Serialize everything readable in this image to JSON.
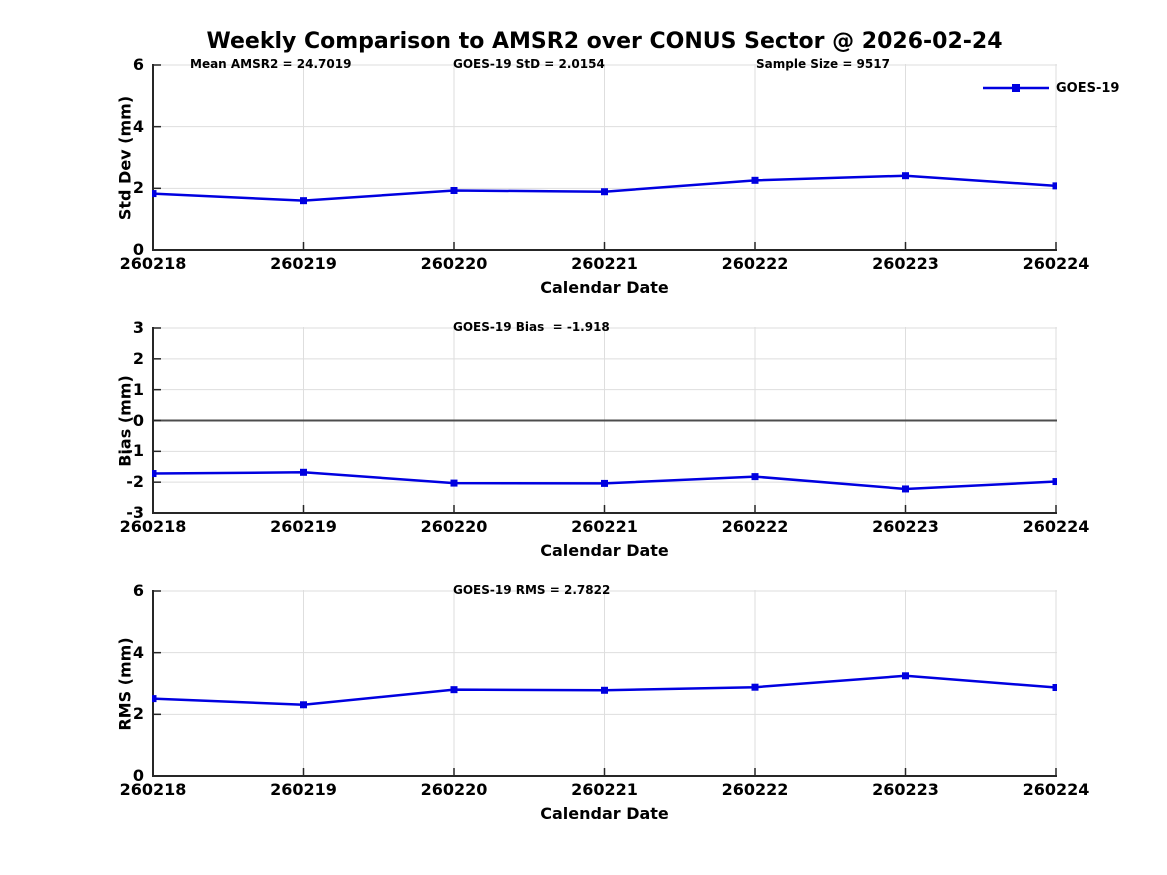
{
  "figure": {
    "title": "Weekly Comparison to AMSR2 over CONUS Sector @ 2026-02-24"
  },
  "legend": {
    "label": "GOES-19"
  },
  "colors": {
    "line": "#0000E0",
    "marker": "#0000E0",
    "grid": "#DEDEDE",
    "axis": "#262626",
    "zero_line": "#4D4D4D",
    "text": "#000000",
    "background": "#FFFFFF"
  },
  "chart_data": [
    {
      "type": "line",
      "id": "std-dev",
      "annotations": [
        "Mean AMSR2 = 24.7019",
        "GOES-19 StD = 2.0154",
        "Sample Size = 9517"
      ],
      "xlabel": "Calendar Date",
      "ylabel": "Std Dev (mm)",
      "categories": [
        "260218",
        "260219",
        "260220",
        "260221",
        "260222",
        "260223",
        "260224"
      ],
      "series": [
        {
          "name": "GOES-19",
          "values": [
            1.83,
            1.6,
            1.93,
            1.89,
            2.26,
            2.41,
            2.08
          ]
        }
      ],
      "ylim": [
        0,
        6
      ],
      "yticks": [
        0,
        2,
        4,
        6
      ],
      "grid": true,
      "zero_line": false,
      "legend_position": "top-right"
    },
    {
      "type": "line",
      "id": "bias",
      "annotations": [
        "GOES-19 Bias  = -1.918"
      ],
      "xlabel": "Calendar Date",
      "ylabel": "Bias (mm)",
      "categories": [
        "260218",
        "260219",
        "260220",
        "260221",
        "260222",
        "260223",
        "260224"
      ],
      "series": [
        {
          "name": "GOES-19",
          "values": [
            -1.72,
            -1.68,
            -2.03,
            -2.04,
            -1.82,
            -2.22,
            -1.98
          ]
        }
      ],
      "ylim": [
        -3,
        3
      ],
      "yticks": [
        -3,
        -2,
        -1,
        0,
        1,
        2,
        3
      ],
      "grid": true,
      "zero_line": true
    },
    {
      "type": "line",
      "id": "rms",
      "annotations": [
        "GOES-19 RMS = 2.7822"
      ],
      "xlabel": "Calendar Date",
      "ylabel": "RMS (mm)",
      "categories": [
        "260218",
        "260219",
        "260220",
        "260221",
        "260222",
        "260223",
        "260224"
      ],
      "series": [
        {
          "name": "GOES-19",
          "values": [
            2.51,
            2.31,
            2.8,
            2.78,
            2.88,
            3.25,
            2.87
          ]
        }
      ],
      "ylim": [
        0,
        6
      ],
      "yticks": [
        0,
        2,
        4,
        6
      ],
      "grid": true,
      "zero_line": false
    }
  ]
}
